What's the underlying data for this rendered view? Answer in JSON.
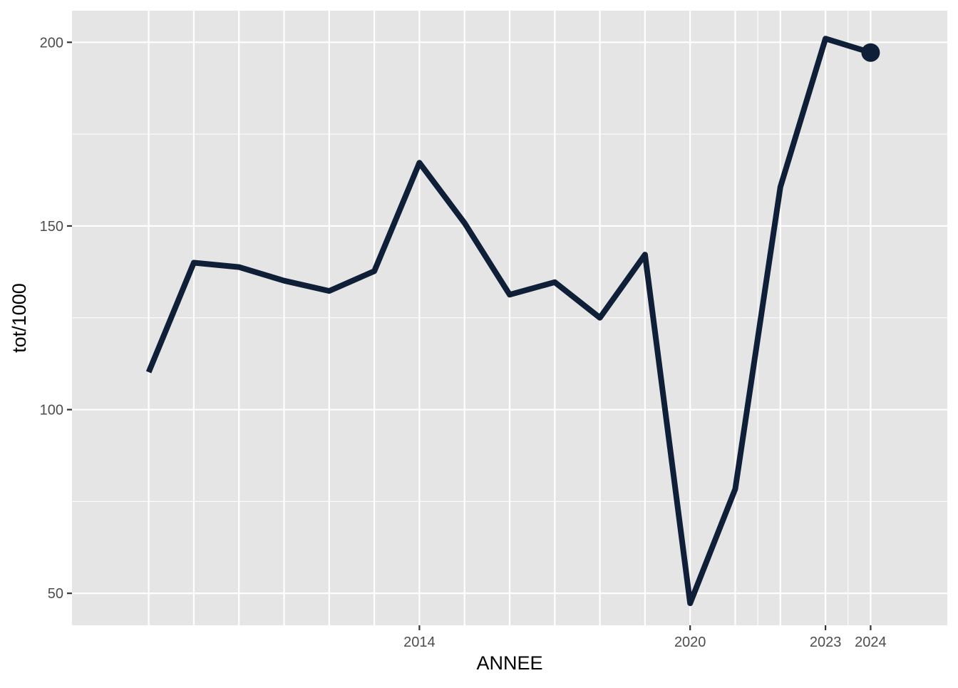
{
  "chart_data": {
    "type": "line",
    "title": "",
    "xlabel": "ANNEE",
    "ylabel": "tot/1000",
    "x": [
      2008,
      2009,
      2010,
      2011,
      2012,
      2013,
      2014,
      2015,
      2016,
      2017,
      2018,
      2019,
      2020,
      2021,
      2022,
      2023,
      2024
    ],
    "series": [
      {
        "values": [
          110.2,
          140.0,
          138.8,
          135.1,
          132.3,
          137.7,
          167.2,
          150.8,
          131.3,
          134.7,
          125.0,
          142.2,
          47.3,
          78.4,
          160.6,
          201.0,
          197.2
        ]
      }
    ],
    "highlight_point": {
      "x": 2024,
      "y": 197.2
    },
    "x_tick_labels": [
      "2014",
      "2020",
      "2023",
      "2024"
    ],
    "y_tick_labels": [
      "50",
      "100",
      "150",
      "200"
    ],
    "xlim": [
      2006.3,
      2025.7
    ],
    "ylim": [
      41.3,
      208.6
    ],
    "grid": true,
    "legend": "none",
    "colors": {
      "panel_background": "#e5e5e5",
      "grid_line": "#ffffff",
      "series_line": "#0f1f38",
      "tick_label": "#4d4d4d",
      "axis_title": "#000000"
    }
  }
}
